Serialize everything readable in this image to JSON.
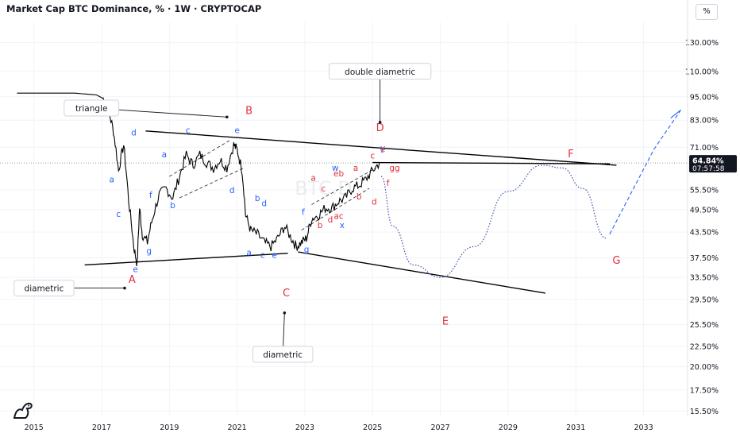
{
  "header": {
    "title": "Market Cap BTC Dominance, % · 1W · CRYPTOCAP",
    "unit_button": "%"
  },
  "price_tag": {
    "value": "64.84%",
    "countdown": "07:57:58"
  },
  "watermark": "BTC.D",
  "colors": {
    "price_line": "#000000",
    "red_labels": "#e0303a",
    "blue_labels": "#2962ff",
    "projection": "#3f51b5",
    "tag_bg": "#131722"
  },
  "chart_data": {
    "type": "line",
    "series": [
      {
        "values": [
          [
            2014.5,
            97
          ],
          [
            2016.2,
            97
          ],
          [
            2016.85,
            96
          ],
          [
            2017.05,
            94
          ],
          [
            2017.2,
            88
          ],
          [
            2017.35,
            78
          ],
          [
            2017.5,
            62
          ],
          [
            2017.65,
            72
          ],
          [
            2017.8,
            52
          ],
          [
            2017.95,
            40
          ],
          [
            2018.05,
            36
          ],
          [
            2018.12,
            50
          ],
          [
            2018.2,
            43
          ],
          [
            2018.35,
            41
          ],
          [
            2018.5,
            47
          ],
          [
            2018.7,
            54
          ],
          [
            2018.9,
            56
          ],
          [
            2019.1,
            53
          ],
          [
            2019.3,
            60
          ],
          [
            2019.5,
            68
          ],
          [
            2019.7,
            64
          ],
          [
            2019.9,
            68
          ],
          [
            2020.1,
            65
          ],
          [
            2020.3,
            63
          ],
          [
            2020.5,
            66
          ],
          [
            2020.7,
            63
          ],
          [
            2020.9,
            72
          ],
          [
            2021.0,
            70
          ],
          [
            2021.15,
            62
          ],
          [
            2021.25,
            48
          ],
          [
            2021.4,
            44
          ],
          [
            2021.6,
            43
          ],
          [
            2021.8,
            41
          ],
          [
            2022.0,
            40
          ],
          [
            2022.2,
            42
          ],
          [
            2022.4,
            45
          ],
          [
            2022.6,
            42
          ],
          [
            2022.75,
            40
          ],
          [
            2022.9,
            41
          ],
          [
            2023.05,
            42
          ],
          [
            2023.2,
            47
          ],
          [
            2023.4,
            48
          ],
          [
            2023.6,
            50
          ],
          [
            2023.8,
            50
          ],
          [
            2024.0,
            52
          ],
          [
            2024.2,
            53
          ],
          [
            2024.4,
            56
          ],
          [
            2024.6,
            57
          ],
          [
            2024.8,
            59
          ],
          [
            2025.0,
            62
          ],
          [
            2025.2,
            64.84
          ]
        ]
      }
    ],
    "projection_curve": [
      [
        2025.25,
        60
      ],
      [
        2025.6,
        45
      ],
      [
        2026.2,
        36
      ],
      [
        2027.0,
        33.5
      ],
      [
        2028.0,
        40
      ],
      [
        2029.0,
        55
      ],
      [
        2030.0,
        64
      ],
      [
        2030.6,
        63
      ],
      [
        2031.2,
        56
      ],
      [
        2031.9,
        42
      ]
    ],
    "projection_up": [
      [
        2032.0,
        43
      ],
      [
        2033.3,
        70
      ],
      [
        2034.1,
        88
      ]
    ],
    "trendlines": [
      [
        [
          2018.3,
          78
        ],
        [
          2032.2,
          64
        ]
      ],
      [
        [
          2016.5,
          36
        ],
        [
          2022.5,
          38.5
        ]
      ],
      [
        [
          2022.8,
          38.8
        ],
        [
          2030.1,
          30.6
        ]
      ],
      [
        [
          2025.0,
          65
        ],
        [
          2032.0,
          64.5
        ]
      ]
    ],
    "channels_dashed": [
      [
        [
          2019.0,
          60
        ],
        [
          2020.8,
          74
        ]
      ],
      [
        [
          2019.3,
          53
        ],
        [
          2021.2,
          63
        ]
      ],
      [
        [
          2023.2,
          51
        ],
        [
          2025.1,
          63
        ]
      ],
      [
        [
          2022.9,
          44
        ],
        [
          2024.9,
          56
        ]
      ]
    ],
    "xlim": [
      2014.0,
      2034.3
    ],
    "ylim_log": [
      15.1,
      146
    ],
    "x_ticks": [
      "2015",
      "2017",
      "2019",
      "2021",
      "2023",
      "2025",
      "2027",
      "2029",
      "2031",
      "2033"
    ],
    "x_tick_values": [
      2015,
      2017,
      2019,
      2021,
      2023,
      2025,
      2027,
      2029,
      2031,
      2033
    ],
    "y_ticks": [
      "130.00%",
      "110.00%",
      "95.00%",
      "83.00%",
      "71.00%",
      "55.50%",
      "49.50%",
      "43.50%",
      "37.50%",
      "33.50%",
      "29.50%",
      "25.50%",
      "22.50%",
      "20.00%",
      "17.50%",
      "15.50%"
    ],
    "y_tick_values": [
      130,
      110,
      95,
      83,
      71,
      55.5,
      49.5,
      43.5,
      37.5,
      33.5,
      29.5,
      25.5,
      22.5,
      20,
      17.5,
      15.5
    ],
    "wave_labels_red": [
      {
        "t": "A",
        "x": 2017.9,
        "y": 32.5
      },
      {
        "t": "B",
        "x": 2021.35,
        "y": 86
      },
      {
        "t": "C",
        "x": 2022.45,
        "y": 30
      },
      {
        "t": "D",
        "x": 2025.22,
        "y": 78
      },
      {
        "t": "E",
        "x": 2027.15,
        "y": 25.5
      },
      {
        "t": "F",
        "x": 2030.85,
        "y": 67
      },
      {
        "t": "G",
        "x": 2032.2,
        "y": 36.2
      }
    ],
    "annotations": [
      {
        "text": "triangle",
        "x": 2016.7,
        "y": 89,
        "tx": 2020.7,
        "ty": 84.5
      },
      {
        "text": "double  diametric",
        "x": 2025.22,
        "y": 110,
        "tx": 2025.22,
        "ty": 82
      },
      {
        "text": "diametric",
        "x": 2015.3,
        "y": 31.5,
        "tx": 2017.68,
        "ty": 31.5
      },
      {
        "text": "diametric",
        "x": 2022.35,
        "y": 21.5,
        "tx": 2022.4,
        "ty": 27.3
      }
    ],
    "wave_labels_small": [
      {
        "t": "b",
        "x": 2017.45,
        "y": 87,
        "c": "blue"
      },
      {
        "t": "d",
        "x": 2017.95,
        "y": 76,
        "c": "blue"
      },
      {
        "t": "a",
        "x": 2017.3,
        "y": 58,
        "c": "blue"
      },
      {
        "t": "c",
        "x": 2017.5,
        "y": 47.5,
        "c": "blue"
      },
      {
        "t": "e",
        "x": 2018.0,
        "y": 34.5,
        "c": "blue"
      },
      {
        "t": "g",
        "x": 2018.4,
        "y": 38.4,
        "c": "blue"
      },
      {
        "t": "f",
        "x": 2018.45,
        "y": 53,
        "c": "blue"
      },
      {
        "t": "b",
        "x": 2019.1,
        "y": 50,
        "c": "blue"
      },
      {
        "t": "a",
        "x": 2018.85,
        "y": 67,
        "c": "blue"
      },
      {
        "t": "c",
        "x": 2019.55,
        "y": 77,
        "c": "blue"
      },
      {
        "t": "d",
        "x": 2020.85,
        "y": 54.5,
        "c": "blue"
      },
      {
        "t": "e",
        "x": 2021.0,
        "y": 77,
        "c": "blue"
      },
      {
        "t": "b",
        "x": 2021.6,
        "y": 52,
        "c": "blue"
      },
      {
        "t": "d",
        "x": 2021.8,
        "y": 50.5,
        "c": "blue"
      },
      {
        "t": "a",
        "x": 2021.35,
        "y": 38,
        "c": "blue"
      },
      {
        "t": "c",
        "x": 2021.75,
        "y": 37.5,
        "c": "blue"
      },
      {
        "t": "e",
        "x": 2022.1,
        "y": 37.5,
        "c": "blue"
      },
      {
        "t": "f",
        "x": 2022.95,
        "y": 48,
        "c": "blue"
      },
      {
        "t": "g",
        "x": 2023.05,
        "y": 38.7,
        "c": "blue"
      },
      {
        "t": "w",
        "x": 2023.9,
        "y": 62,
        "c": "blue"
      },
      {
        "t": "x",
        "x": 2024.1,
        "y": 44.5,
        "c": "blue"
      },
      {
        "t": "y",
        "x": 2025.3,
        "y": 69.5,
        "c": "blue"
      },
      {
        "t": "a",
        "x": 2023.25,
        "y": 58.5,
        "c": "red"
      },
      {
        "t": "c",
        "x": 2023.55,
        "y": 55,
        "c": "red"
      },
      {
        "t": "b",
        "x": 2023.45,
        "y": 44.5,
        "c": "red"
      },
      {
        "t": "d",
        "x": 2023.75,
        "y": 46,
        "c": "red"
      },
      {
        "t": "ac",
        "x": 2024.0,
        "y": 47,
        "c": "red"
      },
      {
        "t": "eb",
        "x": 2024.0,
        "y": 60,
        "c": "red"
      },
      {
        "t": "a",
        "x": 2024.5,
        "y": 62,
        "c": "red"
      },
      {
        "t": "b",
        "x": 2024.6,
        "y": 52.5,
        "c": "red"
      },
      {
        "t": "d",
        "x": 2025.05,
        "y": 51,
        "c": "red"
      },
      {
        "t": "c",
        "x": 2025.0,
        "y": 66.5,
        "c": "red"
      },
      {
        "t": "e",
        "x": 2025.3,
        "y": 69,
        "c": "red"
      },
      {
        "t": "gg",
        "x": 2025.65,
        "y": 62,
        "c": "red"
      },
      {
        "t": "f",
        "x": 2025.45,
        "y": 56.8,
        "c": "red"
      }
    ]
  }
}
